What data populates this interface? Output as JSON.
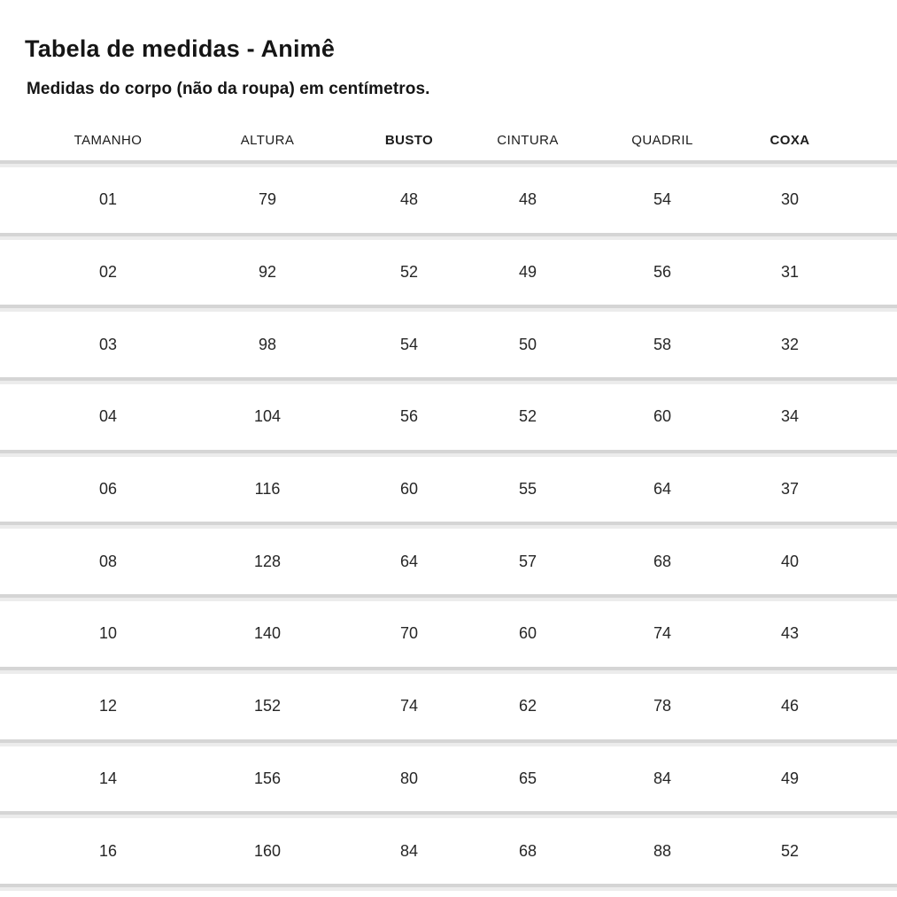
{
  "page": {
    "title": "Tabela de medidas - Animê",
    "subtitle": "Medidas do corpo (não da roupa) em centímetros."
  },
  "table": {
    "columns": [
      {
        "label": "TAMANHO",
        "bold": false
      },
      {
        "label": "ALTURA",
        "bold": false
      },
      {
        "label": "BUSTO",
        "bold": true
      },
      {
        "label": "CINTURA",
        "bold": false
      },
      {
        "label": "QUADRIL",
        "bold": false
      },
      {
        "label": "COXA",
        "bold": true
      }
    ],
    "rows": [
      {
        "tamanho": "01",
        "altura": "79",
        "busto": "48",
        "cintura": "48",
        "quadril": "54",
        "coxa": "30"
      },
      {
        "tamanho": "02",
        "altura": "92",
        "busto": "52",
        "cintura": "49",
        "quadril": "56",
        "coxa": "31"
      },
      {
        "tamanho": "03",
        "altura": "98",
        "busto": "54",
        "cintura": "50",
        "quadril": "58",
        "coxa": "32"
      },
      {
        "tamanho": "04",
        "altura": "104",
        "busto": "56",
        "cintura": "52",
        "quadril": "60",
        "coxa": "34"
      },
      {
        "tamanho": "06",
        "altura": "116",
        "busto": "60",
        "cintura": "55",
        "quadril": "64",
        "coxa": "37"
      },
      {
        "tamanho": "08",
        "altura": "128",
        "busto": "64",
        "cintura": "57",
        "quadril": "68",
        "coxa": "40"
      },
      {
        "tamanho": "10",
        "altura": "140",
        "busto": "70",
        "cintura": "60",
        "quadril": "74",
        "coxa": "43"
      },
      {
        "tamanho": "12",
        "altura": "152",
        "busto": "74",
        "cintura": "62",
        "quadril": "78",
        "coxa": "46"
      },
      {
        "tamanho": "14",
        "altura": "156",
        "busto": "80",
        "cintura": "65",
        "quadril": "84",
        "coxa": "49"
      },
      {
        "tamanho": "16",
        "altura": "160",
        "busto": "84",
        "cintura": "68",
        "quadril": "88",
        "coxa": "52"
      }
    ]
  },
  "colors": {
    "text": "#1a1a1a",
    "divider_dark": "#d5d5d5",
    "divider_light": "#ececec",
    "background": "#ffffff"
  }
}
